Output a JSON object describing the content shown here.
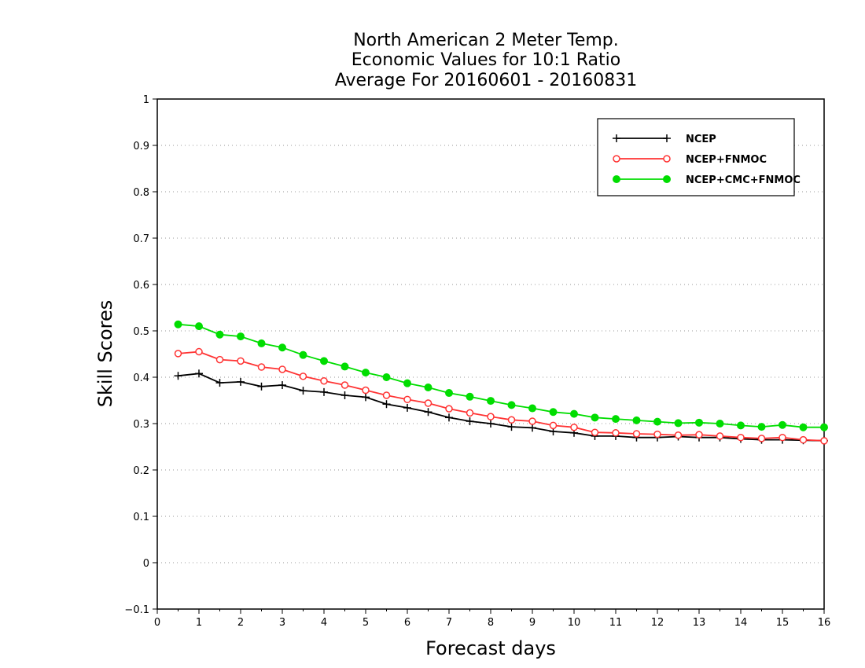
{
  "chart_data": {
    "type": "line",
    "title": [
      "North American 2 Meter Temp.",
      "Economic Values for 10:1 Ratio",
      "Average For 20160601 - 20160831"
    ],
    "xlabel": "Forecast days",
    "ylabel": "Skill Scores",
    "xlim": [
      0,
      16
    ],
    "ylim": [
      -0.1,
      1
    ],
    "xticks": [
      "0",
      "1",
      "2",
      "3",
      "4",
      "5",
      "6",
      "7",
      "8",
      "9",
      "10",
      "11",
      "12",
      "13",
      "14",
      "15",
      "16"
    ],
    "yticks": [
      "−0.1",
      "0",
      "0.1",
      "0.2",
      "0.3",
      "0.4",
      "0.5",
      "0.6",
      "0.7",
      "0.8",
      "0.9",
      "1"
    ],
    "grid": "horizontal dotted",
    "legend_position": "top-right",
    "x": [
      0.5,
      1,
      1.5,
      2,
      2.5,
      3,
      3.5,
      4,
      4.5,
      5,
      5.5,
      6,
      6.5,
      7,
      7.5,
      8,
      8.5,
      9,
      9.5,
      10,
      10.5,
      11,
      11.5,
      12,
      12.5,
      13,
      13.5,
      14,
      14.5,
      15,
      15.5,
      16
    ],
    "series": [
      {
        "name": "NCEP",
        "color": "#000000",
        "marker": "plus",
        "values": [
          0.403,
          0.408,
          0.388,
          0.39,
          0.38,
          0.383,
          0.371,
          0.368,
          0.361,
          0.357,
          0.342,
          0.334,
          0.325,
          0.313,
          0.305,
          0.3,
          0.293,
          0.291,
          0.283,
          0.28,
          0.273,
          0.273,
          0.27,
          0.27,
          0.272,
          0.27,
          0.27,
          0.267,
          0.265,
          0.265,
          0.264,
          0.263
        ]
      },
      {
        "name": "NCEP+FNMOC",
        "color": "#ff3333",
        "marker": "open-circle",
        "values": [
          0.451,
          0.455,
          0.438,
          0.435,
          0.422,
          0.417,
          0.402,
          0.392,
          0.383,
          0.372,
          0.361,
          0.352,
          0.344,
          0.332,
          0.323,
          0.315,
          0.308,
          0.305,
          0.296,
          0.292,
          0.281,
          0.28,
          0.278,
          0.277,
          0.275,
          0.276,
          0.273,
          0.27,
          0.268,
          0.27,
          0.265,
          0.263
        ]
      },
      {
        "name": "NCEP+CMC+FNMOC",
        "color": "#00dd00",
        "marker": "filled-circle",
        "values": [
          0.514,
          0.51,
          0.492,
          0.488,
          0.473,
          0.464,
          0.448,
          0.435,
          0.423,
          0.41,
          0.4,
          0.387,
          0.378,
          0.366,
          0.358,
          0.349,
          0.34,
          0.333,
          0.325,
          0.321,
          0.313,
          0.31,
          0.307,
          0.304,
          0.301,
          0.302,
          0.3,
          0.296,
          0.293,
          0.297,
          0.292,
          0.292
        ]
      }
    ]
  }
}
